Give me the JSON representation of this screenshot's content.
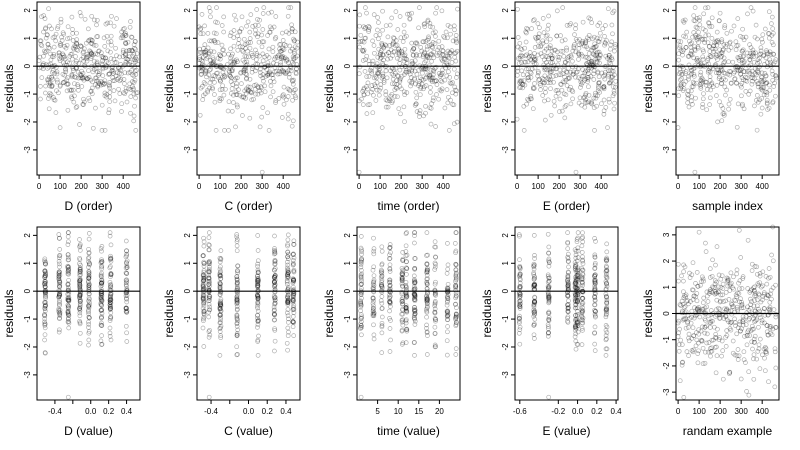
{
  "colors": {
    "points": "#000000",
    "zero_line": "#000000",
    "background": "#ffffff"
  },
  "chart_data": [
    {
      "type": "scatter",
      "xlabel": "D (order)",
      "ylabel": "residuals",
      "xlim": [
        -10,
        480
      ],
      "ylim": [
        -3.9,
        2.3
      ],
      "xticks": [
        0,
        100,
        200,
        300,
        400
      ],
      "xtick_labels": [
        "0",
        "100",
        "200",
        "300",
        "400"
      ],
      "yticks": [
        -3,
        -2,
        -1,
        0,
        1,
        2
      ],
      "ytick_labels": [
        "-3",
        "-2",
        "-1",
        "0",
        "1",
        "2"
      ],
      "hline": 0,
      "n": 470,
      "sample_x": [
        0,
        100,
        200,
        300,
        400,
        460
      ],
      "sample_y": [
        0.2,
        -2.2,
        1.8,
        -1.4,
        0.5,
        -0.3
      ]
    },
    {
      "type": "scatter",
      "xlabel": "C (order)",
      "ylabel": "residuals",
      "xlim": [
        -10,
        480
      ],
      "ylim": [
        -3.9,
        2.3
      ],
      "xticks": [
        0,
        100,
        200,
        300,
        400
      ],
      "xtick_labels": [
        "0",
        "100",
        "200",
        "300",
        "400"
      ],
      "yticks": [
        -3,
        -2,
        -1,
        0,
        1,
        2
      ],
      "ytick_labels": [
        "-3",
        "-2",
        "-1",
        "0",
        "1",
        "2"
      ],
      "hline": 0,
      "n": 470,
      "sample_x": [
        0,
        140,
        300,
        330,
        450
      ],
      "sample_y": [
        0.1,
        -2.3,
        -3.8,
        1.9,
        -0.5
      ]
    },
    {
      "type": "scatter",
      "xlabel": "time (order)",
      "ylabel": "residuals",
      "xlim": [
        -10,
        480
      ],
      "ylim": [
        -3.9,
        2.3
      ],
      "xticks": [
        0,
        100,
        200,
        300,
        400
      ],
      "xtick_labels": [
        "0",
        "100",
        "200",
        "300",
        "400"
      ],
      "yticks": [
        -3,
        -2,
        -1,
        0,
        1,
        2
      ],
      "ytick_labels": [
        "-3",
        "-2",
        "-1",
        "0",
        "1",
        "2"
      ],
      "hline": 0,
      "n": 470,
      "sample_x": [
        0,
        110,
        250,
        350,
        460
      ],
      "sample_y": [
        -3.8,
        -2.2,
        1.9,
        0.4,
        -1.0
      ]
    },
    {
      "type": "scatter",
      "xlabel": "E (order)",
      "ylabel": "residuals",
      "xlim": [
        -10,
        480
      ],
      "ylim": [
        -3.9,
        2.3
      ],
      "xticks": [
        0,
        100,
        200,
        300,
        400
      ],
      "xtick_labels": [
        "0",
        "100",
        "200",
        "300",
        "400"
      ],
      "yticks": [
        -3,
        -2,
        -1,
        0,
        1,
        2
      ],
      "ytick_labels": [
        "-3",
        "-2",
        "-1",
        "0",
        "1",
        "2"
      ],
      "hline": 0,
      "n": 470,
      "sample_x": [
        0,
        150,
        280,
        430
      ],
      "sample_y": [
        -1.9,
        1.8,
        -3.8,
        -2.2
      ]
    },
    {
      "type": "scatter",
      "xlabel": "sample index",
      "ylabel": "residuals",
      "xlim": [
        -10,
        480
      ],
      "ylim": [
        -3.9,
        2.3
      ],
      "xticks": [
        0,
        100,
        200,
        300,
        400
      ],
      "xtick_labels": [
        "0",
        "100",
        "200",
        "300",
        "400"
      ],
      "yticks": [
        -3,
        -2,
        -1,
        0,
        1,
        2
      ],
      "ytick_labels": [
        "-3",
        "-2",
        "-1",
        "0",
        "1",
        "2"
      ],
      "hline": 0,
      "n": 470,
      "sample_x": [
        0,
        80,
        200,
        400
      ],
      "sample_y": [
        -2.2,
        -3.8,
        1.9,
        -1.5
      ]
    },
    {
      "type": "scatter",
      "xlabel": "D (value)",
      "ylabel": "residuals",
      "xlim": [
        -0.6,
        0.55
      ],
      "ylim": [
        -3.9,
        2.3
      ],
      "xticks": [
        -0.4,
        -0.2,
        0.0,
        0.2,
        0.4
      ],
      "xtick_labels": [
        "-0.4",
        "",
        "0.0",
        "0.2",
        "0.4"
      ],
      "yticks": [
        -3,
        -2,
        -1,
        0,
        1,
        2
      ],
      "ytick_labels": [
        "-3",
        "-2",
        "-1",
        "0",
        "1",
        "2"
      ],
      "hline": 0,
      "n": 470,
      "x_levels": [
        -0.51,
        -0.35,
        -0.25,
        -0.12,
        -0.02,
        0.12,
        0.22,
        0.4
      ],
      "sample_y": [
        -2.2,
        1.9,
        -3.8,
        0.8
      ]
    },
    {
      "type": "scatter",
      "xlabel": "C (value)",
      "ylabel": "residuals",
      "xlim": [
        -0.55,
        0.55
      ],
      "ylim": [
        -3.9,
        2.3
      ],
      "xticks": [
        -0.4,
        -0.2,
        0.0,
        0.2,
        0.4
      ],
      "xtick_labels": [
        "-0.4",
        "",
        "0.0",
        "0.2",
        "0.4"
      ],
      "yticks": [
        -3,
        -2,
        -1,
        0,
        1,
        2
      ],
      "ytick_labels": [
        "-3",
        "-2",
        "-1",
        "0",
        "1",
        "2"
      ],
      "hline": 0,
      "n": 470,
      "x_levels": [
        -0.48,
        -0.42,
        -0.3,
        -0.12,
        0.1,
        0.28,
        0.42,
        0.48
      ],
      "sample_y": [
        1.9,
        -3.8,
        -0.5,
        0.3
      ]
    },
    {
      "type": "scatter",
      "xlabel": "time (value)",
      "ylabel": "residuals",
      "xlim": [
        0,
        25
      ],
      "ylim": [
        -3.9,
        2.3
      ],
      "xticks": [
        5,
        10,
        15,
        20
      ],
      "xtick_labels": [
        "5",
        "10",
        "15",
        "20"
      ],
      "yticks": [
        -3,
        -2,
        -1,
        0,
        1,
        2
      ],
      "ytick_labels": [
        "-3",
        "-2",
        "-1",
        "0",
        "1",
        "2"
      ],
      "hline": 0,
      "n": 470,
      "x_levels": [
        1,
        4,
        6,
        8,
        11,
        12,
        14,
        17,
        19,
        22,
        24
      ],
      "sample_y": [
        -3.8,
        1.9,
        -2.2,
        0.4
      ]
    },
    {
      "type": "scatter",
      "xlabel": "E (value)",
      "ylabel": "residuals",
      "xlim": [
        -0.65,
        0.42
      ],
      "ylim": [
        -3.9,
        2.3
      ],
      "xticks": [
        -0.6,
        -0.2,
        0.0,
        0.2,
        0.4
      ],
      "xtick_labels": [
        "-0.6",
        "-0.2",
        "0.0",
        "0.2",
        "0.4"
      ],
      "yticks": [
        -3,
        -2,
        -1,
        0,
        1,
        2
      ],
      "ytick_labels": [
        "-3",
        "-2",
        "-1",
        "0",
        "1",
        "2"
      ],
      "hline": 0,
      "n": 470,
      "x_levels": [
        -0.6,
        -0.45,
        -0.3,
        -0.1,
        -0.02,
        0.0,
        0.05,
        0.18,
        0.3
      ],
      "sample_y": [
        -1.9,
        2.0,
        -3.8,
        0.5
      ]
    },
    {
      "type": "scatter",
      "xlabel": "randam example",
      "ylabel": "residuals",
      "xlim": [
        -10,
        480
      ],
      "ylim": [
        -3.3,
        3.3
      ],
      "xticks": [
        0,
        100,
        200,
        300,
        400
      ],
      "xtick_labels": [
        "0",
        "100",
        "200",
        "300",
        "400"
      ],
      "yticks": [
        -3,
        -2,
        -1,
        0,
        1,
        2,
        3
      ],
      "ytick_labels": [
        "-3",
        "-2",
        "-1",
        "0",
        "1",
        "2",
        "3"
      ],
      "hline": 0,
      "n": 470,
      "sample_x": [
        100,
        450,
        300,
        460
      ],
      "sample_y": [
        3.1,
        3.3,
        -2.5,
        -2.8
      ]
    }
  ]
}
